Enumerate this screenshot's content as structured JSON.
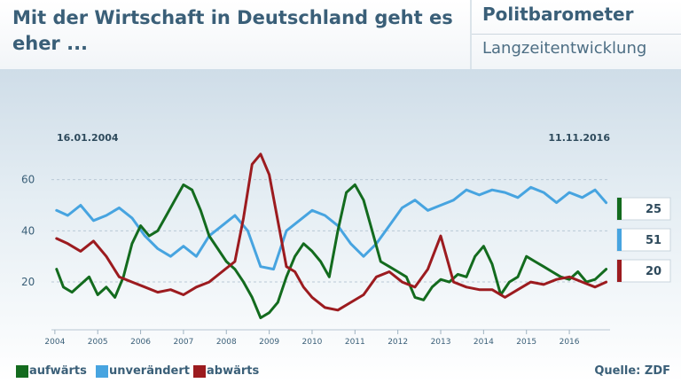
{
  "header": {
    "headline": "Mit der Wirtschaft in Deutschland geht es eher ...",
    "brand": "Politbarometer",
    "subtitle": "Langzeitentwicklung"
  },
  "source": "Quelle: ZDF",
  "colors": {
    "aufwaerts": "#136b1e",
    "unveraendert": "#47a4e0",
    "abwaerts": "#9c1b1f",
    "axis": "#3a5f78"
  },
  "chart_data": {
    "type": "line",
    "title": "Mit der Wirtschaft in Deutschland geht es eher ...",
    "date_start": "16.01.2004",
    "date_end": "11.11.2016",
    "xlim": [
      2003.92,
      2016.95
    ],
    "ylim": [
      2,
      72
    ],
    "y_ticks": [
      20,
      40,
      60
    ],
    "x_ticks": [
      "2004",
      "2005",
      "2006",
      "2007",
      "2008",
      "2009",
      "2010",
      "2011",
      "2012",
      "2013",
      "2014",
      "2015",
      "2016"
    ],
    "series": [
      {
        "name": "aufwärts",
        "color": "#136b1e",
        "end_label": "25",
        "x": [
          2004.04,
          2004.2,
          2004.4,
          2004.6,
          2004.8,
          2005.0,
          2005.2,
          2005.4,
          2005.6,
          2005.8,
          2006.0,
          2006.2,
          2006.4,
          2006.6,
          2006.8,
          2007.0,
          2007.2,
          2007.4,
          2007.6,
          2007.8,
          2008.0,
          2008.2,
          2008.4,
          2008.6,
          2008.8,
          2009.0,
          2009.2,
          2009.4,
          2009.6,
          2009.8,
          2010.0,
          2010.2,
          2010.4,
          2010.6,
          2010.8,
          2011.0,
          2011.2,
          2011.4,
          2011.6,
          2011.8,
          2012.0,
          2012.2,
          2012.4,
          2012.6,
          2012.8,
          2013.0,
          2013.2,
          2013.4,
          2013.6,
          2013.8,
          2014.0,
          2014.2,
          2014.4,
          2014.6,
          2014.8,
          2015.0,
          2015.2,
          2015.4,
          2015.6,
          2015.8,
          2016.0,
          2016.2,
          2016.4,
          2016.6,
          2016.86
        ],
        "values": [
          25,
          18,
          16,
          19,
          22,
          15,
          18,
          14,
          22,
          35,
          42,
          38,
          40,
          46,
          52,
          58,
          56,
          48,
          38,
          33,
          28,
          25,
          20,
          14,
          6,
          8,
          12,
          22,
          30,
          35,
          32,
          28,
          22,
          40,
          55,
          58,
          52,
          40,
          28,
          26,
          24,
          22,
          14,
          13,
          18,
          21,
          20,
          23,
          22,
          30,
          34,
          27,
          15,
          20,
          22,
          30,
          28,
          26,
          24,
          22,
          21,
          24,
          20,
          21,
          25
        ]
      },
      {
        "name": "unverändert",
        "color": "#47a4e0",
        "end_label": "51",
        "x": [
          2004.04,
          2004.3,
          2004.6,
          2004.9,
          2005.2,
          2005.5,
          2005.8,
          2006.1,
          2006.4,
          2006.7,
          2007.0,
          2007.3,
          2007.6,
          2007.9,
          2008.2,
          2008.5,
          2008.8,
          2009.1,
          2009.4,
          2009.7,
          2010.0,
          2010.3,
          2010.6,
          2010.9,
          2011.2,
          2011.5,
          2011.8,
          2012.1,
          2012.4,
          2012.7,
          2013.0,
          2013.3,
          2013.6,
          2013.9,
          2014.2,
          2014.5,
          2014.8,
          2015.1,
          2015.4,
          2015.7,
          2016.0,
          2016.3,
          2016.6,
          2016.86
        ],
        "values": [
          48,
          46,
          50,
          44,
          46,
          49,
          45,
          38,
          33,
          30,
          34,
          30,
          38,
          42,
          46,
          40,
          26,
          25,
          40,
          44,
          48,
          46,
          42,
          35,
          30,
          35,
          42,
          49,
          52,
          48,
          50,
          52,
          56,
          54,
          56,
          55,
          53,
          57,
          55,
          51,
          55,
          53,
          56,
          51
        ]
      },
      {
        "name": "abwärts",
        "color": "#9c1b1f",
        "end_label": "20",
        "x": [
          2004.04,
          2004.3,
          2004.6,
          2004.9,
          2005.2,
          2005.5,
          2005.8,
          2006.1,
          2006.4,
          2006.7,
          2007.0,
          2007.3,
          2007.6,
          2007.9,
          2008.2,
          2008.4,
          2008.6,
          2008.8,
          2009.0,
          2009.2,
          2009.4,
          2009.6,
          2009.8,
          2010.0,
          2010.3,
          2010.6,
          2010.9,
          2011.2,
          2011.5,
          2011.8,
          2012.1,
          2012.4,
          2012.7,
          2013.0,
          2013.3,
          2013.6,
          2013.9,
          2014.2,
          2014.5,
          2014.8,
          2015.1,
          2015.4,
          2015.7,
          2016.0,
          2016.3,
          2016.6,
          2016.86
        ],
        "values": [
          37,
          35,
          32,
          36,
          30,
          22,
          20,
          18,
          16,
          17,
          15,
          18,
          20,
          24,
          28,
          45,
          66,
          70,
          62,
          44,
          26,
          24,
          18,
          14,
          10,
          9,
          12,
          15,
          22,
          24,
          20,
          18,
          25,
          38,
          20,
          18,
          17,
          17,
          14,
          17,
          20,
          19,
          21,
          22,
          20,
          18,
          20
        ]
      }
    ]
  }
}
